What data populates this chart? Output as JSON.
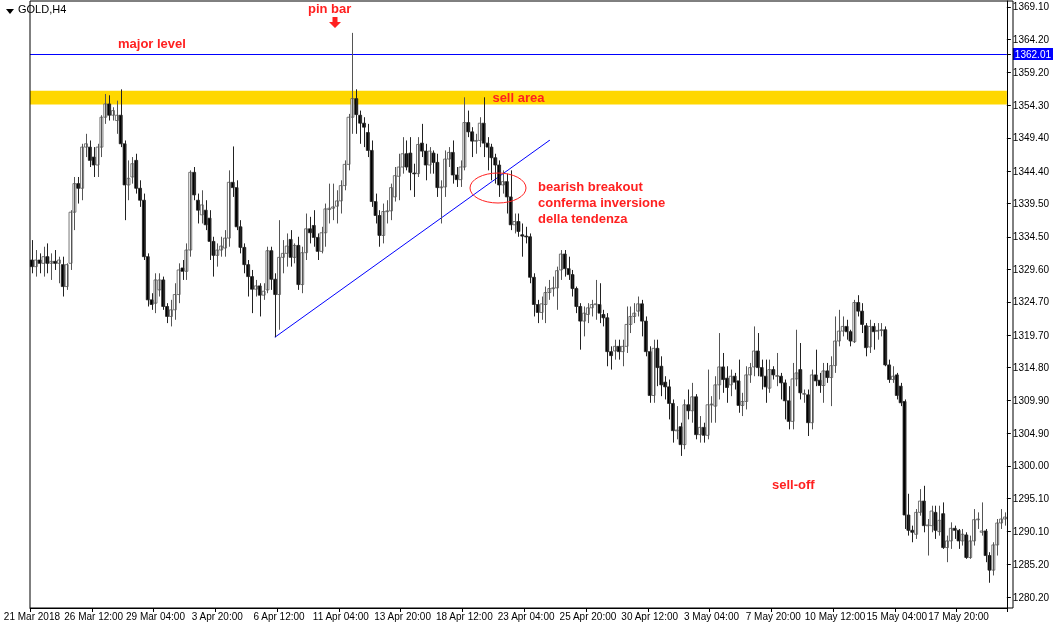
{
  "chart_data": {
    "type": "candlestick",
    "title": "GOLD,H4",
    "categories": [
      "21 Mar 2018",
      null,
      null,
      null,
      null,
      null,
      null,
      null,
      null,
      null,
      null,
      null,
      null,
      null,
      null,
      null,
      "26 Mar 12:00",
      null,
      null,
      null,
      null,
      null,
      null,
      null,
      null,
      null,
      null,
      null,
      null,
      null,
      null,
      null,
      "29 Mar 04:00",
      null,
      null,
      null,
      null,
      null,
      null,
      null,
      null,
      null,
      null,
      null,
      null,
      null,
      null,
      null,
      "3 Apr 20:00",
      null,
      null,
      null,
      null,
      null,
      null,
      null,
      null,
      null,
      null,
      null,
      null,
      null,
      null,
      null,
      "6 Apr 12:00",
      null,
      null,
      null,
      null,
      null,
      null,
      null,
      null,
      null,
      null,
      null,
      null,
      null,
      null,
      null,
      "11 Apr 04:00",
      null,
      null,
      null,
      null,
      null,
      null,
      null,
      null,
      null,
      null,
      null,
      null,
      null,
      null,
      null,
      "13 Apr 20:00",
      null,
      null,
      null,
      null,
      null,
      null,
      null,
      null,
      null,
      null,
      null,
      null,
      null,
      null,
      null,
      "18 Apr 12:00",
      null,
      null,
      null,
      null,
      null,
      null,
      null,
      null,
      null,
      null,
      null,
      null,
      null,
      null,
      null,
      "23 Apr 04:00",
      null,
      null,
      null,
      null,
      null,
      null,
      null,
      null,
      null,
      null,
      null,
      null,
      null,
      null,
      null,
      "25 Apr 20:00",
      null,
      null,
      null,
      null,
      null,
      null,
      null,
      null,
      null,
      null,
      null,
      null,
      null,
      null,
      null,
      "30 Apr 12:00",
      null,
      null,
      null,
      null,
      null,
      null,
      null,
      null,
      null,
      null,
      null,
      null,
      null,
      null,
      null,
      "3 May 04:00",
      null,
      null,
      null,
      null,
      null,
      null,
      null,
      null,
      null,
      null,
      null,
      null,
      null,
      null,
      null,
      "7 May 20:00",
      null,
      null,
      null,
      null,
      null,
      null,
      null,
      null,
      null,
      null,
      null,
      null,
      null,
      null,
      null,
      "10 May 12:00",
      null,
      null,
      null,
      null,
      null,
      null,
      null,
      null,
      null,
      null,
      null,
      null,
      null,
      null,
      null,
      "15 May 04:00",
      null,
      null,
      null,
      null,
      null,
      null,
      null,
      null,
      null,
      null,
      null,
      null,
      null,
      null,
      null,
      "17 May 20:00",
      null,
      null,
      null,
      null,
      null,
      null,
      null,
      null,
      null,
      null,
      null,
      null
    ],
    "series": [
      {
        "ohlc": [
          [
            1331.0,
            1334.0,
            1329.0,
            1330.0
          ],
          [
            1330.0,
            1332.5,
            1328.5,
            1331.0
          ],
          [
            1331.0,
            1332.0,
            1329.0,
            1330.5
          ],
          [
            1330.5,
            1333,
            1328.5,
            1331.5
          ],
          [
            1331.5,
            1333.5,
            1329,
            1330.5
          ],
          [
            1330.5,
            1332,
            1328,
            1330.8
          ],
          [
            1330.8,
            1332.5,
            1329.5,
            1330.5
          ],
          [
            1330.5,
            1331.5,
            1327.5,
            1331.0
          ],
          [
            1330.3,
            1331.5,
            1325.5,
            1327.0
          ],
          [
            1327.0,
            1330.5,
            1326.5,
            1330.3
          ],
          [
            1330.5,
            1338.5,
            1329.5,
            1338.2
          ],
          [
            1338.2,
            1343.5,
            1335.5,
            1342.5
          ],
          [
            1342.5,
            1343.5,
            1339.5,
            1341.8
          ],
          [
            1341.8,
            1348.5,
            1340.0,
            1348.0
          ],
          [
            1348.0,
            1350.0,
            1346.5,
            1348.5
          ],
          [
            1348.0,
            1349.0,
            1345.0,
            1346.0
          ],
          [
            1346.5,
            1348.0,
            1343.5,
            1345.3
          ],
          [
            1345.3,
            1348.5,
            1343.5,
            1348.0
          ],
          [
            1348.0,
            1352.8,
            1346.5,
            1352.5
          ],
          [
            1352.5,
            1356.0,
            1351.5,
            1354.5
          ],
          [
            1354.5,
            1355.8,
            1352.0,
            1352.8
          ],
          [
            1352.8,
            1354.0,
            1352.0,
            1353.5
          ],
          [
            1352.0,
            1355.0,
            1350.0,
            1352.8
          ],
          [
            1352.8,
            1356.7,
            1348.0,
            1348.5
          ],
          [
            1348.5,
            1349.0,
            1337.0,
            1342.3
          ],
          [
            1342.3,
            1346.0,
            1340.0,
            1343.3
          ],
          [
            1343.5,
            1346.5,
            1342.5,
            1345.5
          ],
          [
            1346.0,
            1347.0,
            1341.0,
            1341.8
          ],
          [
            1341.8,
            1343.0,
            1339.0,
            1340.0
          ],
          [
            1340.0,
            1341.0,
            1331.0,
            1331.5
          ],
          [
            1331.5,
            1332.0,
            1324.0,
            1325.0
          ],
          [
            1325.0,
            1326.0,
            1323.5,
            1324.3
          ],
          [
            1324.5,
            1329.0,
            1323.0,
            1328.0
          ],
          [
            1326.5,
            1329.0,
            1325.5,
            1328.0
          ],
          [
            1328.0,
            1328.5,
            1323.5,
            1324.0
          ],
          [
            1324.0,
            1324.5,
            1321.5,
            1322.5
          ],
          [
            1322.5,
            1325.0,
            1321.0,
            1323.5
          ],
          [
            1323.5,
            1327.5,
            1322.0,
            1325.8
          ],
          [
            1325.8,
            1330.5,
            1324.5,
            1329.5
          ],
          [
            1329.8,
            1331.0,
            1328.0,
            1329.3
          ],
          [
            1329.3,
            1333.5,
            1328.0,
            1332.5
          ],
          [
            1332.5,
            1344.5,
            1331.5,
            1344.2
          ],
          [
            1344.2,
            1345.0,
            1340.0,
            1340.8
          ],
          [
            1340.0,
            1341.0,
            1336.5,
            1338.5
          ],
          [
            1337.8,
            1341.5,
            1336.5,
            1339.3
          ],
          [
            1338.5,
            1340.0,
            1335.5,
            1336.3
          ],
          [
            1337.3,
            1338.5,
            1331.0,
            1333.8
          ],
          [
            1333.8,
            1334.5,
            1328.5,
            1331.7
          ],
          [
            1331.7,
            1333.5,
            1330.0,
            1332.5
          ],
          [
            1332.5,
            1334.5,
            1331.5,
            1333.1
          ],
          [
            1332.8,
            1335.5,
            1331.5,
            1334.3
          ],
          [
            1334.3,
            1344.5,
            1333.0,
            1342.7
          ],
          [
            1342.7,
            1348.1,
            1340.5,
            1341.9
          ],
          [
            1341.9,
            1343.0,
            1335.5,
            1336.0
          ],
          [
            1336.0,
            1337.0,
            1332.0,
            1332.9
          ],
          [
            1332.9,
            1333.5,
            1329.0,
            1330.3
          ],
          [
            1330.3,
            1331.0,
            1325.5,
            1328.5
          ],
          [
            1328.5,
            1329.5,
            1323.0,
            1326.6
          ],
          [
            1326.6,
            1328.0,
            1325.5,
            1327.1
          ],
          [
            1327.1,
            1327.5,
            1322.5,
            1325.7
          ],
          [
            1325.7,
            1327.5,
            1325.0,
            1326.3
          ],
          [
            1326.5,
            1333.0,
            1326.0,
            1332.4
          ],
          [
            1332.4,
            1333.0,
            1326.5,
            1328.1
          ],
          [
            1328.1,
            1329.0,
            1319.4,
            1325.8
          ],
          [
            1325.8,
            1337.0,
            1320.5,
            1331.4
          ],
          [
            1331.4,
            1334.0,
            1329.0,
            1332.0
          ],
          [
            1332.0,
            1335.0,
            1330.0,
            1333.1
          ],
          [
            1334.1,
            1335.5,
            1330.0,
            1331.4
          ],
          [
            1331.4,
            1333.5,
            1330.5,
            1333.2
          ],
          [
            1333.2,
            1334.5,
            1326.5,
            1327.3
          ],
          [
            1327.3,
            1333.0,
            1326.0,
            1332.1
          ],
          [
            1332.1,
            1338.0,
            1331.0,
            1335.7
          ],
          [
            1335.7,
            1337.5,
            1333.5,
            1335.1
          ],
          [
            1336.2,
            1338.5,
            1333.0,
            1334.4
          ],
          [
            1334.4,
            1335.0,
            1331.0,
            1332.3
          ],
          [
            1332.3,
            1336.0,
            1332.0,
            1335.1
          ],
          [
            1335.1,
            1339.5,
            1333.0,
            1338.7
          ],
          [
            1338.6,
            1342.5,
            1336.5,
            1338.8
          ],
          [
            1338.8,
            1342.5,
            1337.0,
            1339.0
          ],
          [
            1339.1,
            1341.5,
            1336.5,
            1339.9
          ],
          [
            1339.9,
            1343.0,
            1338.0,
            1342.2
          ],
          [
            1342.2,
            1346.0,
            1341.5,
            1345.4
          ],
          [
            1345.4,
            1353.0,
            1344.5,
            1352.5
          ],
          [
            1352.5,
            1365.2,
            1350.0,
            1355.3
          ],
          [
            1355.3,
            1356.7,
            1350.0,
            1352.9
          ],
          [
            1352.8,
            1353.5,
            1348.5,
            1351.6
          ],
          [
            1351.6,
            1352.5,
            1348.0,
            1351.0
          ],
          [
            1350.2,
            1351.5,
            1346.5,
            1347.5
          ],
          [
            1347.5,
            1349.0,
            1339.0,
            1339.8
          ],
          [
            1339.8,
            1341.0,
            1336.5,
            1337.7
          ],
          [
            1337.7,
            1338.5,
            1333.0,
            1334.7
          ],
          [
            1334.7,
            1339.5,
            1333.5,
            1338.3
          ],
          [
            1338.3,
            1340.0,
            1336.5,
            1338.4
          ],
          [
            1338.4,
            1342.5,
            1337.0,
            1341.9
          ],
          [
            1340.5,
            1345.0,
            1339.8,
            1343.7
          ],
          [
            1343.6,
            1347.0,
            1340.0,
            1345.0
          ],
          [
            1345.0,
            1349.5,
            1344.0,
            1347.0
          ],
          [
            1347.0,
            1349.0,
            1344.5,
            1345.0
          ],
          [
            1347.1,
            1349.5,
            1341.5,
            1344.2
          ],
          [
            1344.1,
            1345.5,
            1340.5,
            1344.0
          ],
          [
            1344.0,
            1349.5,
            1343.5,
            1348.4
          ],
          [
            1348.6,
            1351.5,
            1346.5,
            1347.4
          ],
          [
            1347.4,
            1348.5,
            1343.0,
            1345.3
          ],
          [
            1345.3,
            1348.0,
            1344.0,
            1347.4
          ],
          [
            1347.1,
            1347.5,
            1344.0,
            1345.7
          ],
          [
            1345.7,
            1347.0,
            1340.5,
            1341.9
          ],
          [
            1341.9,
            1343.0,
            1336.5,
            1342.0
          ],
          [
            1342.0,
            1347.5,
            1340.5,
            1346.2
          ],
          [
            1346.2,
            1348.0,
            1345.0,
            1347.2
          ],
          [
            1347.2,
            1349.0,
            1342.5,
            1343.8
          ],
          [
            1343.8,
            1345.0,
            1342.0,
            1343.1
          ],
          [
            1343.1,
            1346.0,
            1342.0,
            1345.0
          ],
          [
            1345.0,
            1355.5,
            1344.5,
            1351.7
          ],
          [
            1351.7,
            1353.5,
            1349.5,
            1350.3
          ],
          [
            1350.3,
            1351.0,
            1346.5,
            1348.9
          ],
          [
            1348.9,
            1350.0,
            1347.0,
            1349.0
          ],
          [
            1349.0,
            1352.5,
            1348.0,
            1351.6
          ],
          [
            1351.6,
            1355.5,
            1346.5,
            1348.6
          ],
          [
            1348.6,
            1349.5,
            1344.5,
            1348.0
          ],
          [
            1348.0,
            1348.5,
            1343.0,
            1346.4
          ],
          [
            1346.4,
            1347.0,
            1342.5,
            1345.3
          ],
          [
            1345.3,
            1346.0,
            1340.5,
            1342.3
          ],
          [
            1342.3,
            1344.5,
            1341.0,
            1342.8
          ],
          [
            1342.8,
            1344.0,
            1338.0,
            1340.5
          ],
          [
            1340.5,
            1344.5,
            1335.5,
            1336.3
          ],
          [
            1336.3,
            1338.0,
            1335.0,
            1336.8
          ],
          [
            1336.8,
            1338.0,
            1334.5,
            1335.3
          ],
          [
            1334.8,
            1336.5,
            1331.5,
            1334.6
          ],
          [
            1334.6,
            1336.0,
            1333.5,
            1334.5
          ],
          [
            1334.5,
            1335.0,
            1327.5,
            1328.4
          ],
          [
            1328.4,
            1329.0,
            1322.5,
            1324.3
          ],
          [
            1324.3,
            1325.0,
            1321.5,
            1323.1
          ],
          [
            1323.1,
            1325.5,
            1322.0,
            1324.4
          ],
          [
            1324.3,
            1327.0,
            1321.5,
            1326.1
          ],
          [
            1326.1,
            1328.0,
            1325.0,
            1326.7
          ],
          [
            1326.7,
            1328.5,
            1325.5,
            1326.8
          ],
          [
            1326.8,
            1330.0,
            1323.5,
            1329.4
          ],
          [
            1329.5,
            1332.5,
            1328.0,
            1331.9
          ],
          [
            1331.9,
            1332.5,
            1328.5,
            1329.7
          ],
          [
            1329.7,
            1331.5,
            1328.0,
            1328.8
          ],
          [
            1328.8,
            1329.5,
            1325.5,
            1326.7
          ],
          [
            1326.7,
            1327.0,
            1323.0,
            1324.0
          ],
          [
            1324.0,
            1324.5,
            1317.5,
            1321.8
          ],
          [
            1321.8,
            1324.0,
            1319.5,
            1323.0
          ],
          [
            1322.8,
            1324.5,
            1321.5,
            1323.8
          ],
          [
            1323.8,
            1325.0,
            1322.5,
            1324.3
          ],
          [
            1324.3,
            1328.0,
            1322.0,
            1324.4
          ],
          [
            1324.3,
            1327.5,
            1321.5,
            1323.0
          ],
          [
            1322.8,
            1323.5,
            1321.0,
            1322.3
          ],
          [
            1322.3,
            1323.0,
            1315.0,
            1317.2
          ],
          [
            1317.2,
            1318.0,
            1314.5,
            1316.6
          ],
          [
            1317.3,
            1319.0,
            1316.0,
            1318.0
          ],
          [
            1318.0,
            1319.0,
            1316.0,
            1317.2
          ],
          [
            1317.2,
            1319.0,
            1315.0,
            1318.0
          ],
          [
            1318.0,
            1324.0,
            1317.0,
            1321.3
          ],
          [
            1321.3,
            1324.0,
            1320.0,
            1322.5
          ],
          [
            1322.5,
            1324.5,
            1321.5,
            1323.0
          ],
          [
            1323.3,
            1325.5,
            1322.5,
            1324.4
          ],
          [
            1324.4,
            1325.0,
            1319.5,
            1321.8
          ],
          [
            1321.8,
            1322.5,
            1316.5,
            1317.2
          ],
          [
            1317.2,
            1318.0,
            1309.5,
            1310.6
          ],
          [
            1310.6,
            1319.0,
            1309.5,
            1317.7
          ],
          [
            1317.7,
            1319.0,
            1312.0,
            1314.8
          ],
          [
            1315.0,
            1316.5,
            1310.5,
            1312.2
          ],
          [
            1312.6,
            1313.5,
            1310.0,
            1311.9
          ],
          [
            1311.9,
            1313.0,
            1307.0,
            1309.4
          ],
          [
            1309.4,
            1310.0,
            1303.5,
            1305.3
          ],
          [
            1305.3,
            1309.0,
            1304.0,
            1305.4
          ],
          [
            1305.9,
            1306.5,
            1301.5,
            1303.2
          ],
          [
            1303.2,
            1310.0,
            1302.5,
            1309.2
          ],
          [
            1309.2,
            1311.5,
            1307.0,
            1308.3
          ],
          [
            1308.3,
            1312.5,
            1306.5,
            1310.4
          ],
          [
            1310.4,
            1310.8,
            1304.0,
            1304.7
          ],
          [
            1304.7,
            1307.5,
            1303.5,
            1305.8
          ],
          [
            1305.8,
            1306.5,
            1303.5,
            1304.6
          ],
          [
            1304.6,
            1314.5,
            1304.0,
            1309.2
          ],
          [
            1309.2,
            1310.5,
            1306.5,
            1309.3
          ],
          [
            1309.0,
            1313.5,
            1306.5,
            1312.2
          ],
          [
            1312.2,
            1320.0,
            1310.0,
            1314.9
          ],
          [
            1314.9,
            1317.0,
            1311.0,
            1313.0
          ],
          [
            1313.2,
            1315.0,
            1309.5,
            1311.8
          ],
          [
            1312.2,
            1314.5,
            1310.5,
            1313.5
          ],
          [
            1313.5,
            1314.0,
            1311.5,
            1312.6
          ],
          [
            1312.8,
            1316.0,
            1308.0,
            1309.1
          ],
          [
            1309.1,
            1311.0,
            1307.5,
            1309.7
          ],
          [
            1309.7,
            1315.0,
            1308.5,
            1313.7
          ],
          [
            1313.7,
            1315.5,
            1312.5,
            1314.8
          ],
          [
            1314.9,
            1321.0,
            1313.5,
            1317.3
          ],
          [
            1317.3,
            1320.0,
            1313.5,
            1314.8
          ],
          [
            1314.8,
            1316.0,
            1311.5,
            1313.5
          ],
          [
            1313.5,
            1316.0,
            1309.5,
            1311.9
          ],
          [
            1311.7,
            1316.0,
            1311.0,
            1314.5
          ],
          [
            1314.5,
            1315.0,
            1313.0,
            1313.7
          ],
          [
            1313.5,
            1317.0,
            1312.0,
            1313.6
          ],
          [
            1313.5,
            1314.0,
            1310.0,
            1312.5
          ],
          [
            1312.5,
            1313.0,
            1307.0,
            1309.8
          ],
          [
            1309.8,
            1312.0,
            1305.5,
            1306.7
          ],
          [
            1306.7,
            1315.5,
            1305.5,
            1313.1
          ],
          [
            1313.1,
            1320.5,
            1312.0,
            1314.0
          ],
          [
            1314.5,
            1318.5,
            1310.0,
            1311.0
          ],
          [
            1310.8,
            1311.5,
            1309.5,
            1310.9
          ],
          [
            1310.7,
            1311.5,
            1304.5,
            1306.5
          ],
          [
            1306.5,
            1314.5,
            1305.5,
            1313.7
          ],
          [
            1313.7,
            1317.5,
            1312.0,
            1312.8
          ],
          [
            1312.9,
            1314.0,
            1311.0,
            1312.1
          ],
          [
            1312.1,
            1315.5,
            1309.5,
            1314.3
          ],
          [
            1314.3,
            1315.5,
            1312.5,
            1313.3
          ],
          [
            1313.3,
            1316.5,
            1309.0,
            1315.1
          ],
          [
            1315.1,
            1322.5,
            1314.0,
            1318.8
          ],
          [
            1318.8,
            1323.5,
            1318.0,
            1320.3
          ],
          [
            1320.3,
            1322.5,
            1319.5,
            1321.0
          ],
          [
            1321.0,
            1322.0,
            1319.0,
            1320.2
          ],
          [
            1320.2,
            1320.5,
            1318.0,
            1318.8
          ],
          [
            1318.7,
            1325.0,
            1318.5,
            1324.6
          ],
          [
            1324.6,
            1325.7,
            1322.5,
            1323.3
          ],
          [
            1323.3,
            1324.5,
            1320.0,
            1321.3
          ],
          [
            1321.1,
            1321.5,
            1316.5,
            1317.8
          ],
          [
            1317.9,
            1322.0,
            1317.0,
            1321.0
          ],
          [
            1321.0,
            1321.5,
            1317.5,
            1320.2
          ],
          [
            1320.3,
            1321.5,
            1319.0,
            1320.4
          ],
          [
            1320.5,
            1321.5,
            1319.5,
            1320.5
          ],
          [
            1320.5,
            1321.0,
            1315.0,
            1315.2
          ],
          [
            1315.2,
            1316.0,
            1312.5,
            1313.0
          ],
          [
            1313.0,
            1315.0,
            1312.5,
            1313.5
          ],
          [
            1313.7,
            1314.0,
            1310.0,
            1310.6
          ],
          [
            1312.0,
            1312.5,
            1309.0,
            1309.5
          ],
          [
            1309.7,
            1310.0,
            1290.5,
            1292.6
          ],
          [
            1292.6,
            1295.8,
            1289.5,
            1290.3
          ],
          [
            1290.3,
            1291.0,
            1288.5,
            1290.0
          ],
          [
            1289.7,
            1293.5,
            1289.0,
            1293.0
          ],
          [
            1293.0,
            1296.5,
            1292.5,
            1294.7
          ],
          [
            1294.7,
            1297.0,
            1290.0,
            1291.0
          ],
          [
            1291.0,
            1292.0,
            1286.5,
            1291.1
          ],
          [
            1291.0,
            1294.0,
            1290.0,
            1293.2
          ],
          [
            1293.0,
            1294.0,
            1289.0,
            1290.3
          ],
          [
            1290.1,
            1294.0,
            1289.5,
            1291.8
          ],
          [
            1292.8,
            1294.5,
            1287.5,
            1287.7
          ],
          [
            1287.7,
            1289.5,
            1285.5,
            1288.7
          ],
          [
            1288.7,
            1291.5,
            1287.5,
            1290.6
          ],
          [
            1290.6,
            1291.0,
            1289.0,
            1290.3
          ],
          [
            1290.3,
            1290.5,
            1287.5,
            1288.7
          ],
          [
            1288.7,
            1290.5,
            1288.0,
            1289.7
          ],
          [
            1289.6,
            1290.0,
            1286.0,
            1286.2
          ],
          [
            1286.2,
            1289.5,
            1286.0,
            1288.7
          ],
          [
            1288.7,
            1293.5,
            1288.0,
            1291.9
          ],
          [
            1291.9,
            1293.0,
            1290.5,
            1292.0
          ],
          [
            1290.0,
            1294.5,
            1289.5,
            1290.2
          ],
          [
            1290.2,
            1290.5,
            1285.5,
            1286.5
          ],
          [
            1286.5,
            1287.0,
            1282.4,
            1284.3
          ],
          [
            1284.3,
            1288.5,
            1283.5,
            1288.1
          ],
          [
            1288.1,
            1292.0,
            1286.5,
            1291.4
          ],
          [
            1291.4,
            1293.5,
            1290.5,
            1292.0
          ],
          [
            1292.0,
            1293.0,
            1291.0,
            1292.3
          ]
        ]
      },
      {
        "type": "line",
        "color": "#0000ff",
        "values": [
          null,
          null,
          null,
          null,
          null,
          null,
          null,
          null,
          null,
          null,
          null,
          null,
          null,
          null,
          null,
          null,
          null,
          null,
          null,
          null,
          null,
          null,
          null,
          null,
          null,
          null,
          null,
          null,
          null,
          null,
          null,
          null,
          null,
          null,
          null,
          null,
          null,
          null,
          null,
          null,
          null,
          null,
          null,
          null,
          null,
          null,
          null,
          null,
          null,
          null,
          null,
          null,
          null,
          null,
          null,
          null,
          null,
          null,
          null,
          null,
          null,
          null,
          null,
          1319.4,
          null,
          null,
          null,
          null,
          null,
          null,
          null,
          null,
          null,
          null,
          null,
          null,
          null,
          null,
          null,
          null,
          null,
          null,
          null,
          null,
          null,
          null,
          null,
          null,
          null,
          null,
          null,
          null,
          null,
          null,
          null,
          null,
          null,
          null,
          null,
          null,
          null,
          null,
          null,
          null,
          null,
          null,
          null,
          null,
          null,
          null,
          null,
          null,
          null,
          null,
          null,
          null,
          null,
          null,
          null,
          null,
          null,
          null,
          null,
          null,
          null,
          null,
          null,
          null,
          null,
          null,
          null,
          null,
          null,
          null,
          1349.0,
          null,
          null,
          null,
          null,
          null,
          null,
          null,
          null,
          null,
          null,
          null,
          null,
          null,
          null,
          null,
          null,
          null,
          null,
          null,
          null,
          null,
          null,
          null,
          null,
          null,
          null,
          null,
          null,
          null,
          null,
          null,
          null,
          null,
          null,
          null,
          null,
          null,
          null,
          null,
          null,
          null,
          null,
          null,
          null,
          null,
          null,
          null,
          null,
          null,
          null,
          null,
          null,
          null,
          null,
          null,
          null,
          null,
          null,
          null,
          null,
          null,
          null,
          null,
          null,
          null,
          null,
          null,
          null,
          null,
          null,
          null,
          null,
          null,
          null,
          null,
          null,
          null,
          null,
          null,
          null,
          null,
          null,
          null,
          null,
          null,
          null,
          null,
          null,
          null,
          null,
          null,
          null,
          null,
          null,
          null,
          null,
          null,
          null,
          null,
          null,
          null,
          null,
          null,
          null,
          null,
          null,
          null,
          null,
          null,
          null,
          null,
          null,
          null,
          null,
          null,
          null,
          null,
          null
        ]
      }
    ],
    "ylim": [
      1278.6,
      1370.0
    ],
    "yticks": [
      {
        "value": 1280.2,
        "label": "1280.20"
      },
      {
        "value": 1285.2,
        "label": "1285.20"
      },
      {
        "value": 1290.1,
        "label": "1290.10"
      },
      {
        "value": 1295.1,
        "label": "1295.10"
      },
      {
        "value": 1300.0,
        "label": "1300.00"
      },
      {
        "value": 1304.9,
        "label": "1304.90"
      },
      {
        "value": 1309.9,
        "label": "1309.90"
      },
      {
        "value": 1314.8,
        "label": "1314.80"
      },
      {
        "value": 1319.7,
        "label": "1319.70"
      },
      {
        "value": 1324.7,
        "label": "1324.70"
      },
      {
        "value": 1329.6,
        "label": "1329.60"
      },
      {
        "value": 1334.5,
        "label": "1334.50"
      },
      {
        "value": 1339.5,
        "label": "1339.50"
      },
      {
        "value": 1344.4,
        "label": "1344.40"
      },
      {
        "value": 1349.4,
        "label": "1349.40"
      },
      {
        "value": 1354.3,
        "label": "1354.30"
      },
      {
        "value": 1359.2,
        "label": "1359.20"
      },
      {
        "value": 1362.01,
        "label": "1362.01"
      },
      {
        "value": 1364.2,
        "label": "1364.20"
      },
      {
        "value": 1369.1,
        "label": "1369.10"
      }
    ],
    "ref_lines": [
      {
        "axis": "y",
        "value": 1362.01,
        "label": "major level",
        "color": "#0000ff"
      }
    ],
    "bands": [
      {
        "axis": "y",
        "from": 1354.4,
        "to": 1356.5,
        "label": "sell area",
        "color": "#ffd700"
      }
    ],
    "annotations": [
      "pin bar",
      "bearish breakout\nconferma inversione\ndella tendenza",
      "sell-off"
    ]
  }
}
